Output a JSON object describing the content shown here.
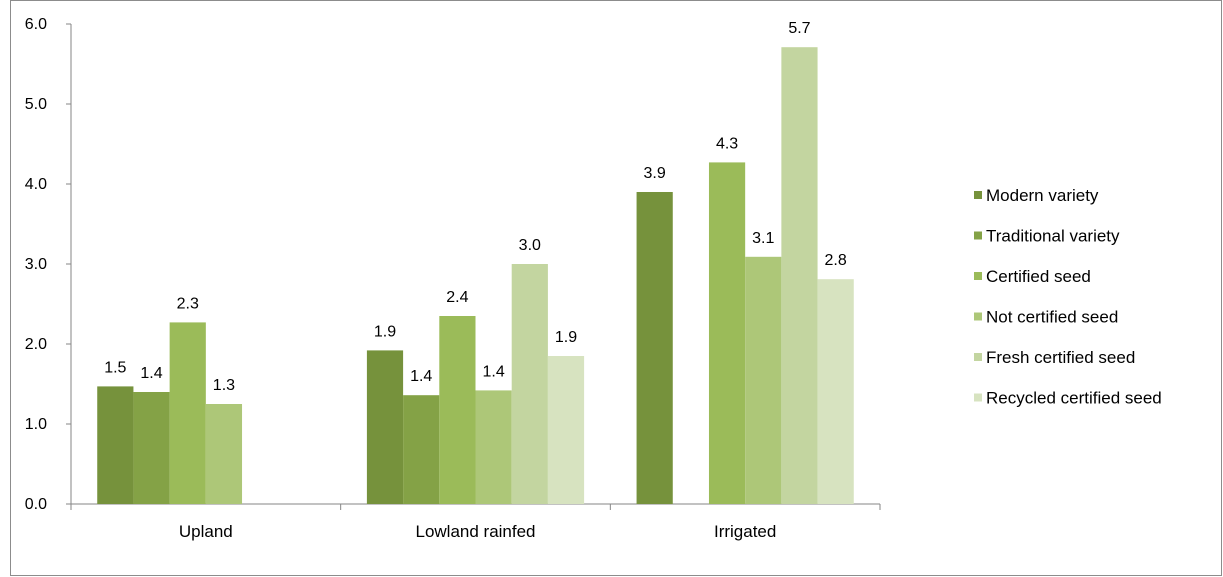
{
  "chart_data": {
    "type": "bar",
    "title": "",
    "xlabel": "",
    "ylabel": "",
    "ylim": [
      0,
      6
    ],
    "yticks": [
      0.0,
      1.0,
      2.0,
      3.0,
      4.0,
      5.0,
      6.0
    ],
    "grid": false,
    "legend_position": "right",
    "categories": [
      "Upland",
      "Lowland rainfed",
      "Irrigated"
    ],
    "series": [
      {
        "name": "Modern variety",
        "color": "#76923c",
        "values": [
          1.5,
          1.9,
          3.9
        ],
        "display_values": [
          1.47,
          1.92,
          3.9
        ]
      },
      {
        "name": "Traditional variety",
        "color": "#84a246",
        "values": [
          1.4,
          1.4,
          null
        ],
        "display_values": [
          1.4,
          1.36,
          null
        ]
      },
      {
        "name": "Certified seed",
        "color": "#9bbb59",
        "values": [
          2.3,
          2.4,
          4.3
        ],
        "display_values": [
          2.27,
          2.35,
          4.27
        ]
      },
      {
        "name": "Not certified seed",
        "color": "#adc778",
        "values": [
          1.3,
          1.4,
          3.1
        ],
        "display_values": [
          1.25,
          1.42,
          3.09
        ]
      },
      {
        "name": "Fresh certified seed",
        "color": "#c3d5a0",
        "values": [
          null,
          3.0,
          5.7
        ],
        "display_values": [
          null,
          3.0,
          5.71
        ]
      },
      {
        "name": "Recycled certified seed",
        "color": "#d7e3c0",
        "values": [
          null,
          1.9,
          2.8
        ],
        "display_values": [
          null,
          1.85,
          2.81
        ]
      }
    ]
  }
}
